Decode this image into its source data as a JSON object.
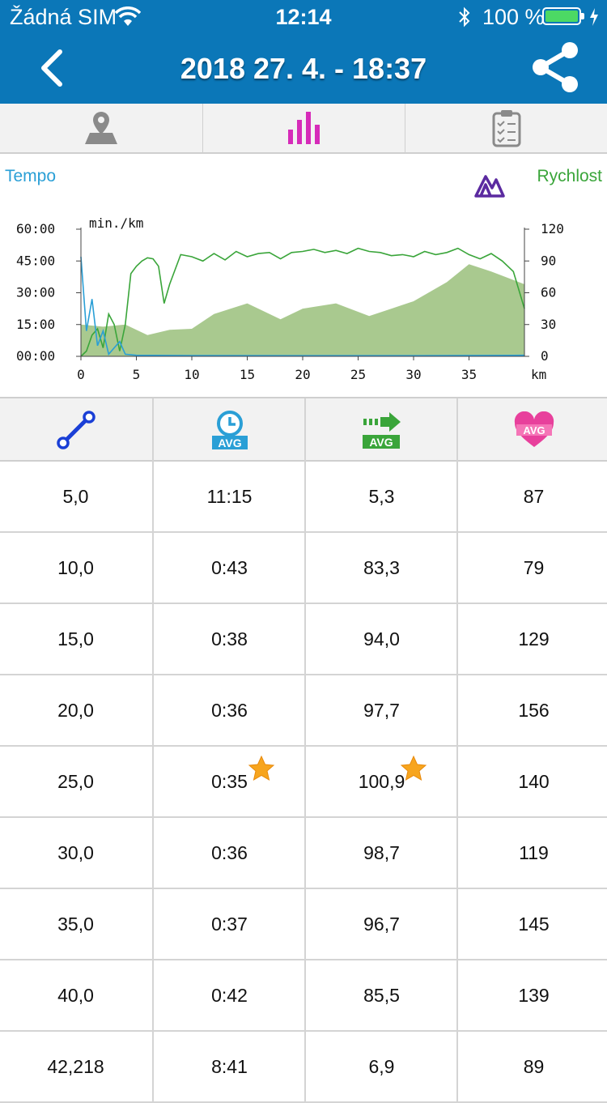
{
  "status_bar": {
    "carrier": "Žádná SIM",
    "time": "12:14",
    "battery": "100 %"
  },
  "nav": {
    "title": "2018 27. 4. - 18:37",
    "back_icon": "chevron-left-icon",
    "share_icon": "share-icon"
  },
  "tabs": [
    {
      "icon": "map-pin-icon",
      "active": false
    },
    {
      "icon": "bar-chart-icon",
      "active": true
    },
    {
      "icon": "clipboard-checklist-icon",
      "active": false
    }
  ],
  "chart_data": {
    "type": "line",
    "legend_left": "Tempo",
    "legend_right": "Rychlost",
    "y_left_unit": "min./km",
    "x_unit": "km",
    "y_left_ticks": [
      "60:00",
      "45:00",
      "30:00",
      "15:00",
      "00:00"
    ],
    "y_right_ticks": [
      "120",
      "90",
      "60",
      "30",
      "0"
    ],
    "x_ticks": [
      "0",
      "5",
      "10",
      "15",
      "20",
      "25",
      "30",
      "35"
    ],
    "xlim": [
      0,
      40
    ],
    "y_left_lim": [
      0,
      60
    ],
    "y_right_lim": [
      0,
      120
    ],
    "series": [
      {
        "color": "#3aa53a",
        "axis": "right",
        "x": [
          0,
          0.5,
          1,
          1.5,
          2,
          2.5,
          3,
          3.5,
          4,
          4.5,
          5,
          5.5,
          6,
          6.5,
          7,
          7.5,
          8,
          9,
          10,
          11,
          12,
          13,
          14,
          15,
          16,
          17,
          18,
          19,
          20,
          21,
          22,
          23,
          24,
          25,
          26,
          27,
          28,
          29,
          30,
          31,
          32,
          33,
          34,
          35,
          36,
          37,
          38,
          39,
          40
        ],
        "y": [
          0,
          5,
          20,
          26,
          8,
          40,
          30,
          5,
          30,
          78,
          85,
          90,
          93,
          92,
          85,
          50,
          68,
          96,
          94,
          90,
          97,
          91,
          99,
          94,
          97,
          98,
          92,
          98,
          99,
          101,
          98,
          100,
          97,
          102,
          99,
          98,
          95,
          96,
          94,
          99,
          96,
          98,
          102,
          96,
          92,
          97,
          90,
          80,
          45
        ]
      },
      {
        "color": "#2a9fd6",
        "axis": "left",
        "x": [
          0,
          0.5,
          1,
          1.5,
          2,
          2.5,
          3,
          3.5,
          4,
          5,
          10,
          20,
          30,
          40
        ],
        "y": [
          47,
          12,
          27,
          5,
          12,
          1,
          4,
          7,
          1,
          0.5,
          0.4,
          0.3,
          0.3,
          0.5
        ]
      },
      {
        "color": "#a9c98f",
        "axis": "right",
        "kind": "area",
        "x": [
          0,
          2,
          4,
          6,
          8,
          10,
          12,
          15,
          18,
          20,
          23,
          26,
          30,
          33,
          35,
          37,
          40
        ],
        "y": [
          30,
          28,
          30,
          20,
          25,
          26,
          40,
          50,
          35,
          45,
          50,
          38,
          52,
          70,
          87,
          80,
          68
        ]
      }
    ]
  },
  "table": {
    "header_icons": [
      "distance-icon",
      "avg-time-icon",
      "avg-speed-icon",
      "avg-heart-rate-icon"
    ],
    "rows": [
      [
        "5,0",
        "11:15",
        "5,3",
        "87"
      ],
      [
        "10,0",
        "0:43",
        "83,3",
        "79"
      ],
      [
        "15,0",
        "0:38",
        "94,0",
        "129"
      ],
      [
        "20,0",
        "0:36",
        "97,7",
        "156"
      ],
      [
        "25,0",
        "0:35",
        "100,9",
        "140"
      ],
      [
        "30,0",
        "0:36",
        "98,7",
        "119"
      ],
      [
        "35,0",
        "0:37",
        "96,7",
        "145"
      ],
      [
        "40,0",
        "0:42",
        "85,5",
        "139"
      ],
      [
        "42,218",
        "8:41",
        "6,9",
        "89"
      ]
    ],
    "best_marks": [
      {
        "row": 4,
        "col": 1
      },
      {
        "row": 4,
        "col": 2
      }
    ]
  }
}
